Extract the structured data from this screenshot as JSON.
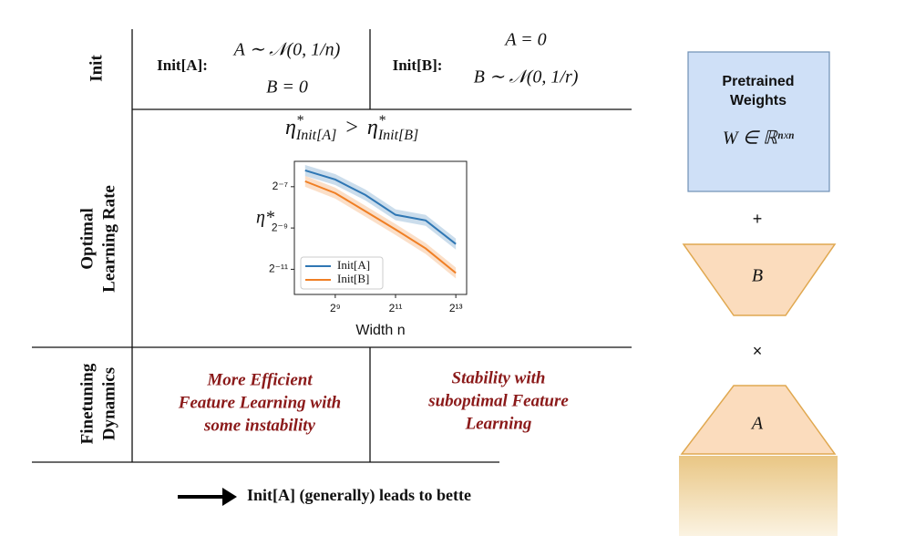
{
  "row_headers": {
    "init": "Init",
    "learning_rate": [
      "Optimal",
      "Learning Rate"
    ],
    "dynamics": [
      "Finetuning",
      "Dynamics"
    ]
  },
  "init_a": {
    "label": "Init[A]:",
    "lines": [
      "A ∼ 𝒩(0, 1/n)",
      "B = 0"
    ]
  },
  "init_b": {
    "label": "Init[B]:",
    "lines": [
      "A = 0",
      "B ∼ 𝒩(0, 1/r)"
    ]
  },
  "lr_relation": {
    "left": {
      "symbol": "η",
      "star": "*",
      "sub": "Init[A]"
    },
    "operator": ">",
    "right": {
      "symbol": "η",
      "star": "*",
      "sub": "Init[B]"
    }
  },
  "chart": {
    "type": "line",
    "xlabel": "Width n",
    "ylabel": "η*",
    "log_x": true,
    "log_y": true,
    "xlim": [
      200,
      10500
    ],
    "ylim": [
      0.00021,
      0.0183
    ],
    "xticks": [
      {
        "value": 512,
        "label": "2⁹"
      },
      {
        "value": 2048,
        "label": "2¹¹"
      },
      {
        "value": 8192,
        "label": "2¹³"
      }
    ],
    "yticks": [
      {
        "value": 0.0078125,
        "label": "2⁻⁷"
      },
      {
        "value": 0.001953125,
        "label": "2⁻⁹"
      },
      {
        "value": 0.00048828125,
        "label": "2⁻¹¹"
      }
    ],
    "x": [
      256,
      512,
      1024,
      2048,
      4096,
      8192
    ],
    "legend": "lower left",
    "series": [
      {
        "name": "Init[A]",
        "color": "#2f77b4",
        "values": [
          0.0135,
          0.00993,
          0.00592,
          0.00304,
          0.00252,
          0.00114
        ]
      },
      {
        "name": "Init[B]",
        "color": "#f07f24",
        "values": [
          0.00937,
          0.0063,
          0.00343,
          0.00186,
          0.000982,
          0.000431
        ]
      }
    ]
  },
  "dynamics_a": [
    "More Efficient",
    "Feature Learning with",
    "some instability"
  ],
  "dynamics_b": [
    "Stability with",
    "suboptimal Feature",
    "Learning"
  ],
  "conclusion": "Init[A] (generally) leads to bette",
  "components": {
    "pretrained": [
      "Pretrained",
      "Weights"
    ],
    "weight": "W ∈ ℝⁿˣⁿ",
    "plus": "+",
    "b": "B",
    "times": "×",
    "a": "A"
  }
}
